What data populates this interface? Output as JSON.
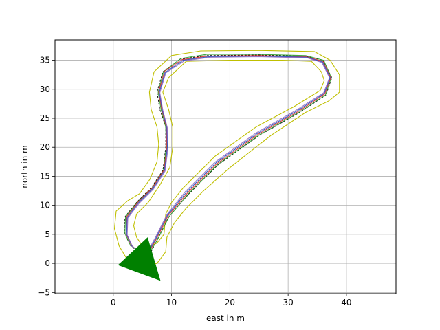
{
  "chart_data": {
    "type": "line",
    "title": "",
    "xlabel": "east in m",
    "ylabel": "north in m",
    "xlim": [
      -10,
      48.5
    ],
    "ylim": [
      -5.2,
      38.5
    ],
    "xticks": [
      0,
      10,
      20,
      30,
      40
    ],
    "yticks": [
      -5,
      0,
      5,
      10,
      15,
      20,
      25,
      30,
      35
    ],
    "grid": true,
    "legend": "none",
    "colors": {
      "boundary": "#bfbf00",
      "centerline": "#000000",
      "path_green": "#2ca02c",
      "path_red": "#d62728",
      "path_blue": "#1f4fbf",
      "path_purple": "#9467bd",
      "arrow": "#008000"
    },
    "centerline": [
      [
        5.0,
        1.5
      ],
      [
        3.0,
        3.0
      ],
      [
        2.0,
        5.0
      ],
      [
        2.0,
        8.0
      ],
      [
        4.0,
        10.5
      ],
      [
        6.5,
        13.0
      ],
      [
        8.5,
        16.0
      ],
      [
        9.0,
        20.0
      ],
      [
        9.0,
        23.5
      ],
      [
        8.0,
        26.5
      ],
      [
        7.5,
        29.5
      ],
      [
        8.5,
        33.0
      ],
      [
        11.5,
        35.2
      ],
      [
        16.0,
        35.8
      ],
      [
        25.0,
        35.9
      ],
      [
        33.0,
        35.7
      ],
      [
        36.0,
        35.0
      ],
      [
        37.5,
        32.0
      ],
      [
        36.5,
        29.0
      ],
      [
        32.0,
        26.0
      ],
      [
        25.0,
        22.0
      ],
      [
        18.0,
        17.0
      ],
      [
        13.0,
        12.0
      ],
      [
        9.5,
        8.0
      ],
      [
        7.5,
        4.0
      ],
      [
        6.5,
        2.0
      ],
      [
        5.0,
        1.5
      ]
    ],
    "outer_boundary": [
      [
        5.5,
        -0.5
      ],
      [
        2.5,
        0.5
      ],
      [
        1.0,
        3.0
      ],
      [
        0.2,
        6.0
      ],
      [
        0.5,
        9.0
      ],
      [
        2.5,
        10.8
      ],
      [
        4.5,
        12.0
      ],
      [
        6.3,
        14.5
      ],
      [
        7.5,
        17.5
      ],
      [
        7.8,
        20.5
      ],
      [
        7.5,
        23.5
      ],
      [
        6.5,
        26.5
      ],
      [
        6.2,
        29.5
      ],
      [
        7.0,
        33.0
      ],
      [
        10.0,
        35.8
      ],
      [
        15.0,
        36.6
      ],
      [
        25.0,
        36.7
      ],
      [
        34.5,
        36.5
      ],
      [
        37.2,
        35.0
      ],
      [
        38.8,
        32.5
      ],
      [
        38.8,
        29.5
      ],
      [
        37.0,
        28.0
      ],
      [
        33.0,
        26.0
      ],
      [
        27.0,
        22.0
      ],
      [
        20.0,
        16.5
      ],
      [
        15.5,
        12.5
      ],
      [
        12.5,
        9.5
      ],
      [
        10.5,
        7.0
      ],
      [
        9.2,
        4.5
      ],
      [
        9.0,
        2.0
      ],
      [
        7.5,
        0.0
      ],
      [
        5.5,
        -0.5
      ]
    ],
    "inner_boundary": [
      [
        5.0,
        3.0
      ],
      [
        4.0,
        4.5
      ],
      [
        3.5,
        6.5
      ],
      [
        4.0,
        8.5
      ],
      [
        6.0,
        10.5
      ],
      [
        8.0,
        13.5
      ],
      [
        9.7,
        16.5
      ],
      [
        10.2,
        20.0
      ],
      [
        10.2,
        23.5
      ],
      [
        9.5,
        26.5
      ],
      [
        8.5,
        29.5
      ],
      [
        9.5,
        32.0
      ],
      [
        12.5,
        34.8
      ],
      [
        20.0,
        35.0
      ],
      [
        29.0,
        35.0
      ],
      [
        34.0,
        34.8
      ],
      [
        35.7,
        33.0
      ],
      [
        36.2,
        31.5
      ],
      [
        35.5,
        29.8
      ],
      [
        31.0,
        27.0
      ],
      [
        24.5,
        23.5
      ],
      [
        17.5,
        18.5
      ],
      [
        12.0,
        13.0
      ],
      [
        10.0,
        10.5
      ],
      [
        9.0,
        8.5
      ],
      [
        8.7,
        5.0
      ],
      [
        7.5,
        3.5
      ],
      [
        6.0,
        2.8
      ],
      [
        5.0,
        3.0
      ]
    ],
    "series": [
      {
        "color_key": "path_green",
        "values": [
          [
            4.6,
            1.8
          ],
          [
            2.9,
            3.2
          ],
          [
            2.0,
            5.2
          ],
          [
            2.1,
            8.0
          ],
          [
            4.0,
            10.4
          ],
          [
            6.6,
            12.9
          ],
          [
            8.6,
            16.0
          ],
          [
            9.1,
            20.0
          ],
          [
            9.0,
            23.5
          ],
          [
            8.2,
            26.5
          ],
          [
            7.7,
            29.5
          ],
          [
            8.6,
            33.0
          ],
          [
            11.6,
            35.3
          ],
          [
            16.0,
            36.0
          ],
          [
            25.0,
            36.0
          ],
          [
            33.0,
            35.8
          ],
          [
            36.1,
            35.0
          ],
          [
            37.4,
            32.0
          ],
          [
            36.4,
            29.0
          ],
          [
            32.0,
            26.1
          ],
          [
            25.0,
            22.1
          ],
          [
            18.0,
            17.1
          ],
          [
            13.0,
            12.1
          ],
          [
            9.6,
            8.1
          ],
          [
            7.6,
            4.1
          ],
          [
            6.4,
            2.1
          ],
          [
            4.6,
            1.8
          ]
        ]
      },
      {
        "color_key": "path_red",
        "values": [
          [
            4.8,
            1.7
          ],
          [
            3.1,
            3.1
          ],
          [
            2.2,
            5.1
          ],
          [
            2.3,
            8.0
          ],
          [
            4.2,
            10.5
          ],
          [
            6.7,
            13.0
          ],
          [
            8.7,
            16.1
          ],
          [
            9.2,
            20.0
          ],
          [
            9.1,
            23.5
          ],
          [
            8.3,
            26.6
          ],
          [
            7.8,
            29.6
          ],
          [
            8.8,
            33.1
          ],
          [
            11.8,
            35.1
          ],
          [
            16.2,
            35.7
          ],
          [
            25.0,
            35.8
          ],
          [
            33.1,
            35.6
          ],
          [
            36.0,
            34.8
          ],
          [
            37.3,
            32.0
          ],
          [
            36.3,
            29.2
          ],
          [
            31.8,
            26.2
          ],
          [
            24.8,
            22.2
          ],
          [
            17.8,
            17.2
          ],
          [
            12.8,
            12.2
          ],
          [
            9.4,
            8.2
          ],
          [
            7.4,
            4.2
          ],
          [
            6.3,
            2.2
          ],
          [
            4.8,
            1.7
          ]
        ]
      },
      {
        "color_key": "path_blue",
        "values": [
          [
            5.0,
            1.6
          ],
          [
            3.2,
            3.0
          ],
          [
            2.3,
            5.0
          ],
          [
            2.4,
            7.9
          ],
          [
            4.3,
            10.4
          ],
          [
            6.8,
            12.9
          ],
          [
            8.8,
            16.0
          ],
          [
            9.3,
            20.0
          ],
          [
            9.2,
            23.4
          ],
          [
            8.4,
            26.5
          ],
          [
            7.9,
            29.5
          ],
          [
            8.9,
            32.9
          ],
          [
            12.0,
            35.0
          ],
          [
            16.4,
            35.6
          ],
          [
            25.0,
            35.7
          ],
          [
            33.2,
            35.5
          ],
          [
            35.9,
            34.7
          ],
          [
            37.2,
            32.0
          ],
          [
            36.2,
            29.3
          ],
          [
            31.6,
            26.3
          ],
          [
            24.6,
            22.3
          ],
          [
            17.6,
            17.3
          ],
          [
            12.6,
            12.3
          ],
          [
            9.3,
            8.3
          ],
          [
            7.3,
            4.3
          ],
          [
            6.2,
            2.3
          ],
          [
            5.0,
            1.6
          ]
        ]
      },
      {
        "color_key": "path_purple",
        "values": [
          [
            5.2,
            1.5
          ],
          [
            3.3,
            2.9
          ],
          [
            2.4,
            4.9
          ],
          [
            2.5,
            7.8
          ],
          [
            4.4,
            10.3
          ],
          [
            6.9,
            12.8
          ],
          [
            8.9,
            15.9
          ],
          [
            9.4,
            19.9
          ],
          [
            9.3,
            23.3
          ],
          [
            8.5,
            26.4
          ],
          [
            8.0,
            29.4
          ],
          [
            9.0,
            32.8
          ],
          [
            12.2,
            34.9
          ],
          [
            16.6,
            35.5
          ],
          [
            25.0,
            35.6
          ],
          [
            33.3,
            35.4
          ],
          [
            35.8,
            34.6
          ],
          [
            37.1,
            32.0
          ],
          [
            36.1,
            29.4
          ],
          [
            31.4,
            26.4
          ],
          [
            24.4,
            22.4
          ],
          [
            17.4,
            17.4
          ],
          [
            12.4,
            12.4
          ],
          [
            9.2,
            8.4
          ],
          [
            7.2,
            4.4
          ],
          [
            6.1,
            2.4
          ],
          [
            5.2,
            1.5
          ]
        ]
      }
    ],
    "heading_marker": {
      "color_key": "arrow",
      "points": [
        [
          0.8,
          -0.3
        ],
        [
          5.9,
          4.5
        ],
        [
          8.1,
          -3.0
        ]
      ]
    }
  }
}
